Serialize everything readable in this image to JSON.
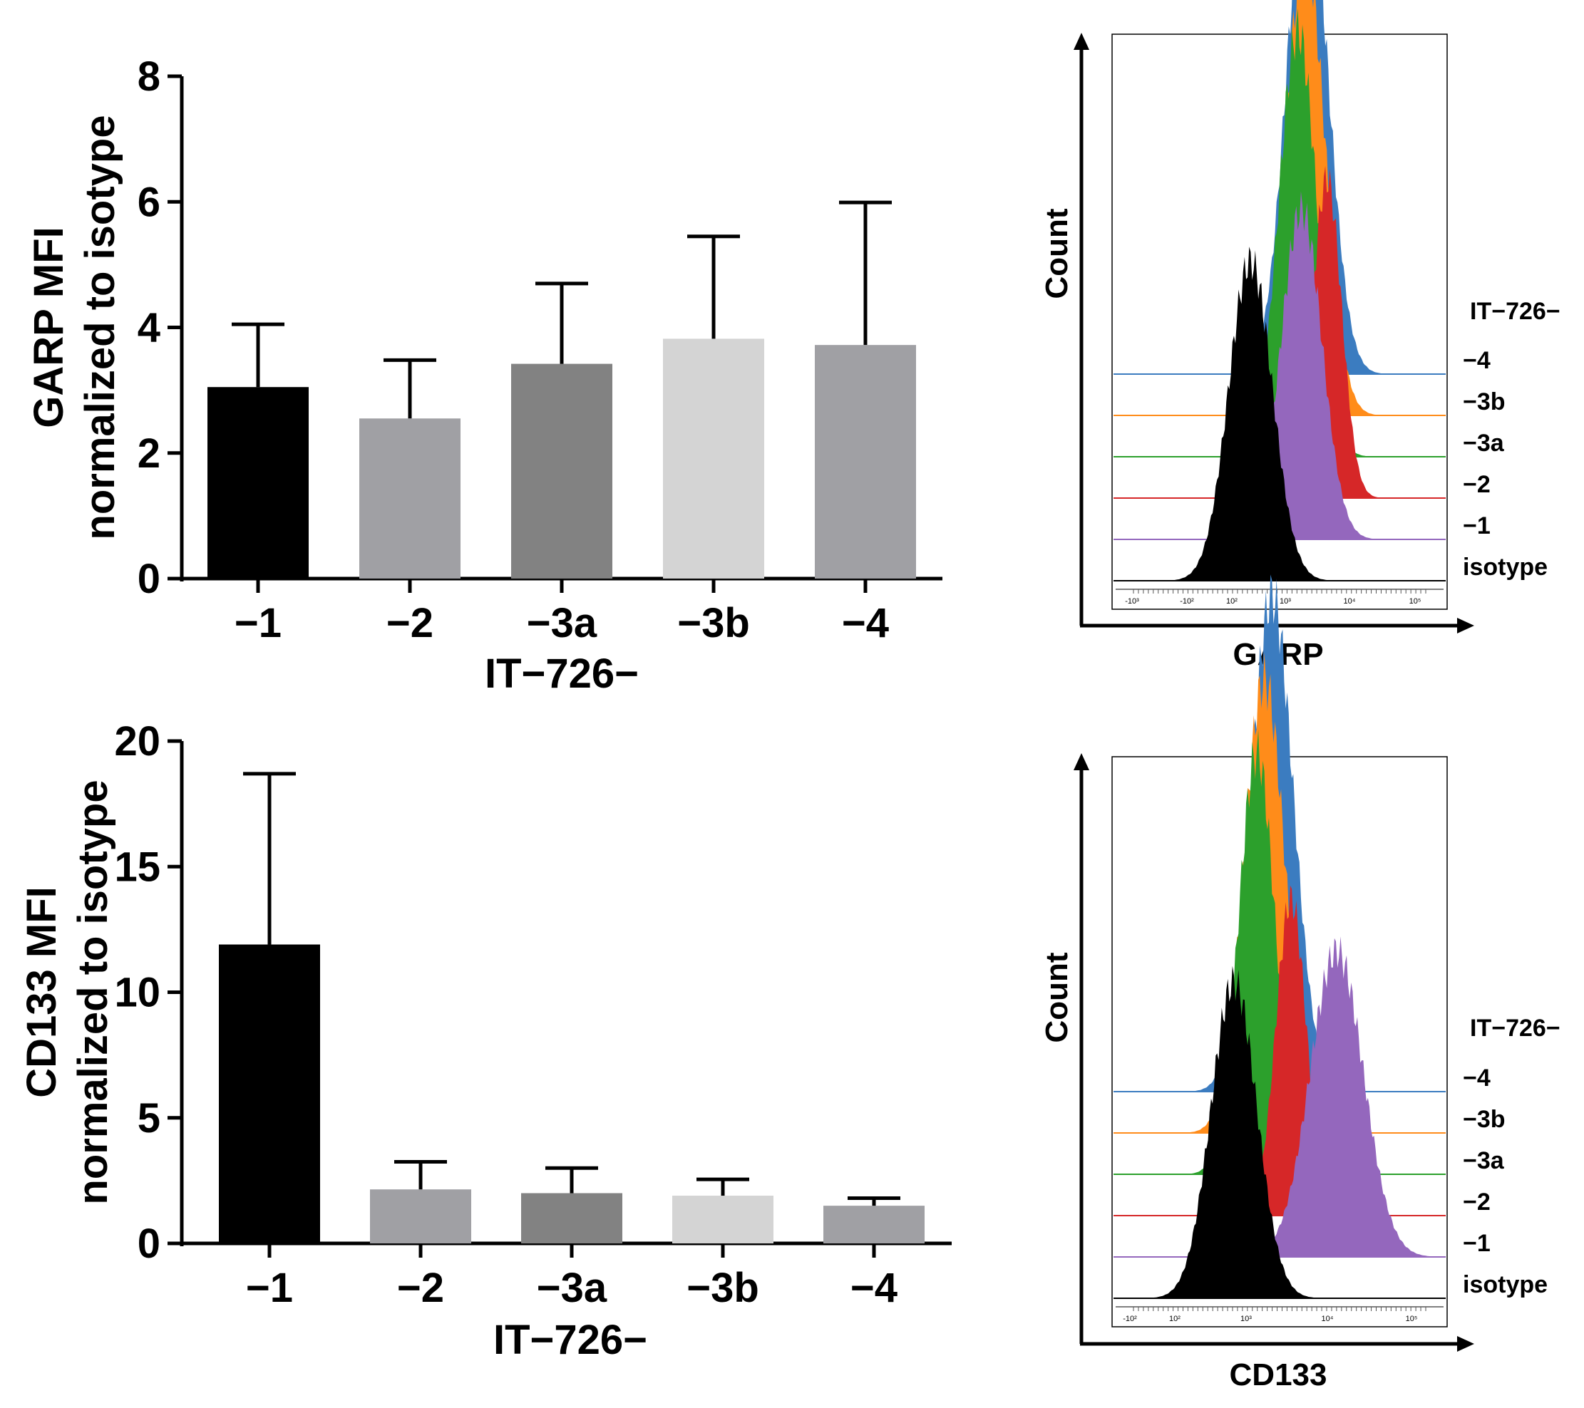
{
  "chart_data": [
    {
      "type": "bar",
      "panel": "top-left",
      "categories": [
        "−1",
        "−2",
        "−3a",
        "−3b",
        "−4"
      ],
      "values": [
        3.05,
        2.55,
        3.42,
        3.82,
        3.72
      ],
      "errors": [
        1.0,
        0.93,
        1.28,
        1.63,
        2.27
      ],
      "colors": [
        "#000000",
        "#a0a0a4",
        "#828282",
        "#d4d4d4",
        "#a0a0a4"
      ],
      "yticks": [
        "0",
        "2",
        "4",
        "6",
        "8"
      ],
      "ylim": [
        0,
        8
      ],
      "ylabel_line1": "GARP MFI",
      "ylabel_line2": "normalized to isotype",
      "xlabel": "IT−726−"
    },
    {
      "type": "bar",
      "panel": "bottom-left",
      "categories": [
        "−1",
        "−2",
        "−3a",
        "−3b",
        "−4"
      ],
      "values": [
        11.9,
        2.15,
        2.0,
        1.9,
        1.5
      ],
      "errors": [
        6.8,
        1.1,
        1.0,
        0.65,
        0.3
      ],
      "colors": [
        "#000000",
        "#a0a0a4",
        "#828282",
        "#d4d4d4",
        "#a0a0a4"
      ],
      "yticks": [
        "0",
        "5",
        "10",
        "15",
        "20"
      ],
      "ylim": [
        0,
        20
      ],
      "ylabel_line1": "CD133 MFI",
      "ylabel_line2": "normalized to isotype",
      "xlabel": "IT−726−"
    },
    {
      "type": "area",
      "panel": "top-right",
      "ylabel": "Count",
      "xlabel": "GARP",
      "legend_title": "IT−726−",
      "tick_labels": [
        "-10³",
        "-10²",
        "10²",
        "10³",
        "10⁴",
        "10⁵"
      ],
      "series": [
        {
          "name": "−4",
          "color": "#3b7cc0",
          "peak_log": 3.68,
          "width": 0.28,
          "height": 0.95
        },
        {
          "name": "−3b",
          "color": "#ff8c1a",
          "peak_log": 3.65,
          "width": 0.27,
          "height": 0.87
        },
        {
          "name": "−3a",
          "color": "#2ca02c",
          "peak_log": 3.55,
          "width": 0.26,
          "height": 0.8
        },
        {
          "name": "−2",
          "color": "#d62728",
          "peak_log": 3.95,
          "width": 0.2,
          "height": 0.6
        },
        {
          "name": "−1",
          "color": "#9467bd",
          "peak_log": 3.6,
          "width": 0.28,
          "height": 0.62
        },
        {
          "name": "isotype",
          "color": "#000000",
          "peak_log": 2.9,
          "width": 0.3,
          "height": 0.6
        }
      ]
    },
    {
      "type": "area",
      "panel": "bottom-right",
      "ylabel": "Count",
      "xlabel": "CD133",
      "legend_title": "IT−726−",
      "tick_labels": [
        "-10²",
        "10²",
        "10³",
        "10⁴",
        "10⁵"
      ],
      "series": [
        {
          "name": "−4",
          "color": "#3b7cc0",
          "peak_log": 3.3,
          "width": 0.28,
          "height": 0.94
        },
        {
          "name": "−3b",
          "color": "#ff8c1a",
          "peak_log": 3.2,
          "width": 0.27,
          "height": 0.86
        },
        {
          "name": "−3a",
          "color": "#2ca02c",
          "peak_log": 3.1,
          "width": 0.24,
          "height": 0.8
        },
        {
          "name": "−2",
          "color": "#d62728",
          "peak_log": 3.55,
          "width": 0.2,
          "height": 0.6
        },
        {
          "name": "−1",
          "color": "#9467bd",
          "peak_log": 4.15,
          "width": 0.35,
          "height": 0.58
        },
        {
          "name": "isotype",
          "color": "#000000",
          "peak_log": 2.8,
          "width": 0.3,
          "height": 0.6
        }
      ]
    }
  ]
}
